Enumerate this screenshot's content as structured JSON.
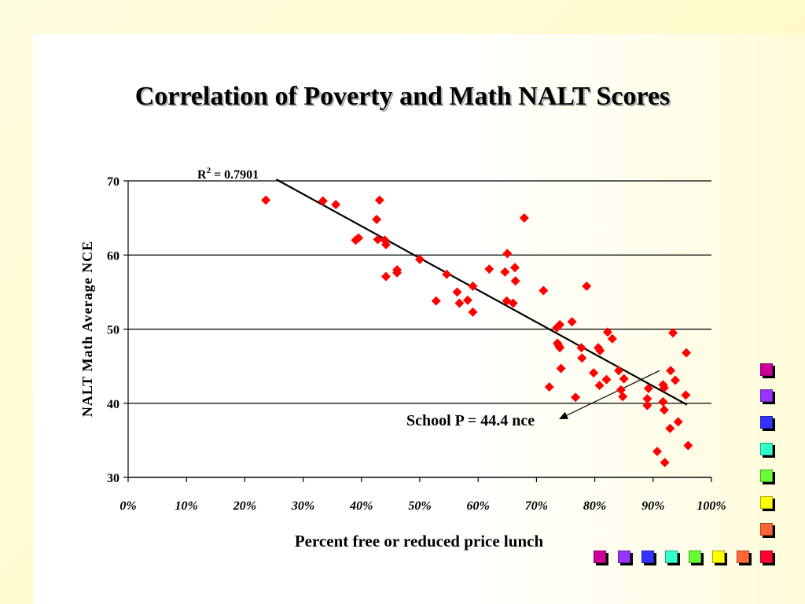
{
  "slide": {
    "title": "Correlation of Poverty and Math NALT Scores"
  },
  "colors": {
    "marker": "#ff0000",
    "trendline": "#000000",
    "gridline": "#000000",
    "decor_squares": [
      "#cc0099",
      "#9933ff",
      "#3333ff",
      "#33ffcc",
      "#66ff33",
      "#ffff00",
      "#ff6633",
      "#ff0033"
    ]
  },
  "chart_data": {
    "type": "scatter",
    "title": "",
    "xlabel": "Percent free or reduced price lunch",
    "ylabel": "NALT Math Average NCE",
    "xlim": [
      0,
      100
    ],
    "ylim": [
      30,
      70
    ],
    "x_ticks": [
      "0%",
      "10%",
      "20%",
      "30%",
      "40%",
      "50%",
      "60%",
      "70%",
      "80%",
      "90%",
      "100%"
    ],
    "y_ticks": [
      "30",
      "40",
      "50",
      "60",
      "70"
    ],
    "grid": "horizontal",
    "legend": "none",
    "marker": "diamond",
    "r_squared_label": {
      "prefix": "R",
      "sup": "2",
      "suffix": " = 0.7901"
    },
    "trendline": {
      "x": [
        25.4,
        95.8
      ],
      "y": [
        70.2,
        39.8
      ]
    },
    "annotation": {
      "text": "School P = 44.4 nce",
      "target": [
        91.1,
        44.4
      ]
    },
    "series": [
      {
        "points": [
          [
            23.6,
            67.4
          ],
          [
            33.4,
            67.3
          ],
          [
            35.6,
            66.8
          ],
          [
            39.0,
            62.0
          ],
          [
            39.5,
            62.3
          ],
          [
            42.6,
            64.8
          ],
          [
            42.8,
            62.1
          ],
          [
            43.1,
            67.4
          ],
          [
            44.0,
            62.0
          ],
          [
            44.2,
            61.4
          ],
          [
            44.2,
            57.1
          ],
          [
            46.1,
            57.6
          ],
          [
            46.1,
            58.0
          ],
          [
            50.0,
            59.4
          ],
          [
            52.8,
            53.8
          ],
          [
            54.6,
            57.4
          ],
          [
            56.4,
            55.0
          ],
          [
            56.8,
            53.5
          ],
          [
            58.2,
            53.9
          ],
          [
            59.1,
            55.8
          ],
          [
            59.1,
            52.3
          ],
          [
            61.9,
            58.1
          ],
          [
            64.6,
            57.7
          ],
          [
            64.9,
            53.8
          ],
          [
            65.0,
            60.2
          ],
          [
            66.0,
            53.5
          ],
          [
            66.3,
            58.3
          ],
          [
            66.4,
            56.5
          ],
          [
            67.9,
            65.0
          ],
          [
            71.2,
            55.2
          ],
          [
            72.2,
            42.2
          ],
          [
            73.5,
            50.2
          ],
          [
            73.6,
            48.1
          ],
          [
            73.8,
            47.8
          ],
          [
            74.0,
            50.6
          ],
          [
            74.0,
            47.5
          ],
          [
            74.2,
            44.7
          ],
          [
            76.1,
            51.0
          ],
          [
            76.7,
            40.8
          ],
          [
            77.7,
            47.5
          ],
          [
            77.8,
            46.1
          ],
          [
            78.6,
            55.8
          ],
          [
            79.8,
            44.1
          ],
          [
            80.6,
            47.5
          ],
          [
            80.8,
            42.4
          ],
          [
            80.9,
            47.1
          ],
          [
            82.0,
            43.2
          ],
          [
            82.2,
            49.6
          ],
          [
            83.0,
            48.7
          ],
          [
            84.1,
            44.4
          ],
          [
            84.5,
            41.8
          ],
          [
            84.8,
            40.9
          ],
          [
            85.0,
            43.3
          ],
          [
            89.0,
            40.6
          ],
          [
            89.0,
            39.7
          ],
          [
            89.2,
            42.0
          ],
          [
            90.7,
            33.5
          ],
          [
            91.7,
            42.5
          ],
          [
            91.7,
            40.2
          ],
          [
            91.9,
            42.1
          ],
          [
            91.9,
            39.1
          ],
          [
            92.0,
            32.0
          ],
          [
            92.9,
            36.6
          ],
          [
            93.0,
            44.4
          ],
          [
            93.4,
            49.5
          ],
          [
            93.8,
            43.1
          ],
          [
            94.3,
            37.5
          ],
          [
            95.6,
            41.1
          ],
          [
            95.7,
            46.8
          ],
          [
            96.0,
            34.3
          ]
        ]
      }
    ]
  }
}
